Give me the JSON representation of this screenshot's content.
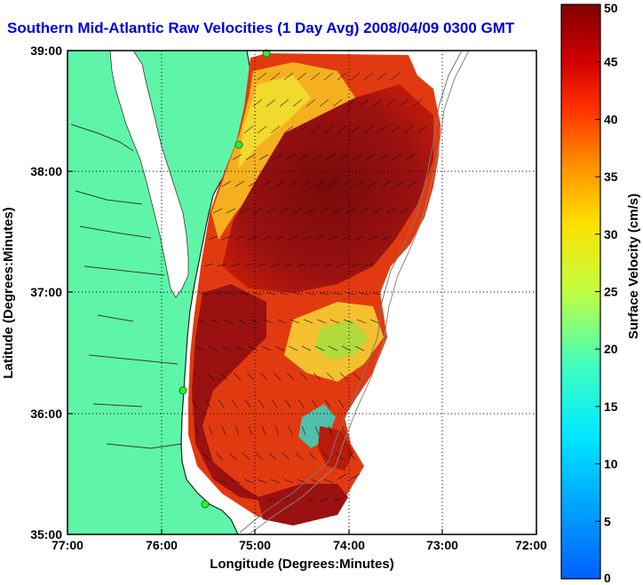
{
  "title": "Southern Mid-Atlantic Raw Velocities (1 Day Avg) 2008/04/09 0300 GMT",
  "axes": {
    "xlabel": "Longitude (Degrees:Minutes)",
    "ylabel": "Latitude (Degrees:Minutes)",
    "x_ticks": [
      "77:00",
      "76:00",
      "75:00",
      "74:00",
      "73:00",
      "72:00"
    ],
    "y_ticks": [
      "39:00",
      "38:00",
      "37:00",
      "36:00",
      "35:00"
    ]
  },
  "colorbar": {
    "label": "Surface Velocity (cm/s)",
    "ticks": [
      "0",
      "5",
      "10",
      "15",
      "20",
      "25",
      "30",
      "35",
      "40",
      "45",
      "50"
    ],
    "min": 0,
    "max": 50
  },
  "colors": {
    "land": "#5ff5a8",
    "water": "#ffffff",
    "title": "#0000dd",
    "field_dark": "#8b1010",
    "site_marker": "#33ee33"
  },
  "chart_data": {
    "type": "heatmap",
    "xlim": [
      -77,
      -72
    ],
    "ylim": [
      35,
      39
    ],
    "variable": "surface current speed (cm/s)",
    "colormap": "jet",
    "clim": [
      0,
      50
    ],
    "grid": true,
    "radar_sites_lonlat": [
      [
        -74.88,
        38.99
      ],
      [
        -75.1,
        38.2
      ],
      [
        -75.7,
        36.18
      ],
      [
        -75.53,
        35.25
      ]
    ]
  }
}
